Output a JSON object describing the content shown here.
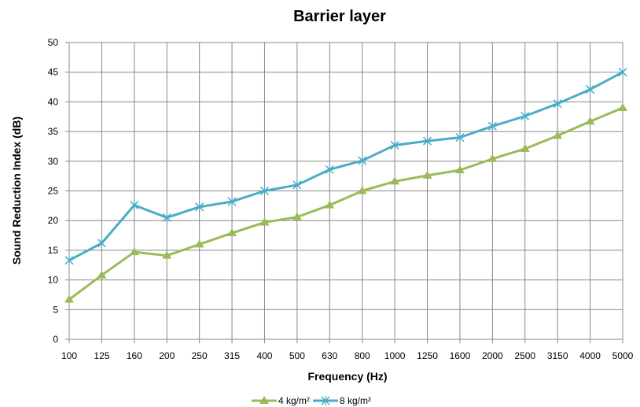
{
  "chart_data": {
    "type": "line",
    "title": "Barrier layer",
    "xlabel": "Frequency (Hz)",
    "ylabel": "Sound Reduction Index (dB)",
    "categories": [
      "100",
      "125",
      "160",
      "200",
      "250",
      "315",
      "400",
      "500",
      "630",
      "800",
      "1000",
      "1250",
      "1600",
      "2000",
      "2500",
      "3150",
      "4000",
      "5000"
    ],
    "ylim": [
      0,
      50
    ],
    "yticks": [
      0,
      5,
      10,
      15,
      20,
      25,
      30,
      35,
      40,
      45,
      50
    ],
    "grid": true,
    "legend_position": "bottom",
    "series": [
      {
        "name": "4 kg/m²",
        "color": "#9BBB59",
        "marker": "triangle",
        "values": [
          6.7,
          10.8,
          14.7,
          14.1,
          16.0,
          17.9,
          19.7,
          20.6,
          22.6,
          25.0,
          26.6,
          27.6,
          28.5,
          30.4,
          32.1,
          34.3,
          36.7,
          39.0
        ]
      },
      {
        "name": "8 kg/m²",
        "color": "#4BACC6",
        "marker": "x",
        "values": [
          13.3,
          16.2,
          22.6,
          20.5,
          22.3,
          23.2,
          25.0,
          26.0,
          28.6,
          30.1,
          32.7,
          33.4,
          34.0,
          35.9,
          37.6,
          39.7,
          42.1,
          45.0
        ]
      }
    ]
  }
}
